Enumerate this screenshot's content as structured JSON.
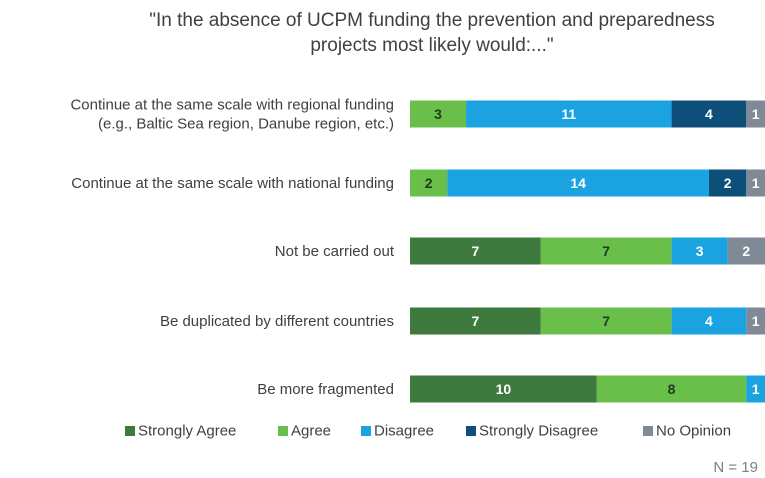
{
  "chart_data": {
    "type": "bar",
    "orientation": "horizontal-stacked",
    "title_lines": [
      "\"In the absence of UCPM funding the prevention and preparedness",
      "projects most likely would:...\""
    ],
    "categories": [
      [
        "Continue at the same scale with regional funding",
        "(e.g., Baltic Sea region, Danube region, etc.)"
      ],
      [
        "Continue at the same scale with national funding"
      ],
      [
        "Not be carried out"
      ],
      [
        "Be duplicated by different countries"
      ],
      [
        "Be more fragmented"
      ]
    ],
    "series": [
      {
        "name": "Strongly Agree",
        "color": "#3e7a3e",
        "values": [
          0,
          0,
          7,
          7,
          10
        ]
      },
      {
        "name": "Agree",
        "color": "#6abf4b",
        "values": [
          3,
          2,
          7,
          7,
          8
        ]
      },
      {
        "name": "Disagree",
        "color": "#1aa3e0",
        "values": [
          11,
          14,
          3,
          4,
          1
        ]
      },
      {
        "name": "Strongly Disagree",
        "color": "#0e4f7a",
        "values": [
          4,
          2,
          0,
          0,
          0
        ]
      },
      {
        "name": "No Opinion",
        "color": "#7f8a96",
        "values": [
          1,
          1,
          2,
          1,
          0
        ]
      }
    ],
    "total": 19,
    "legend_position": "bottom",
    "note": "N = 19"
  }
}
